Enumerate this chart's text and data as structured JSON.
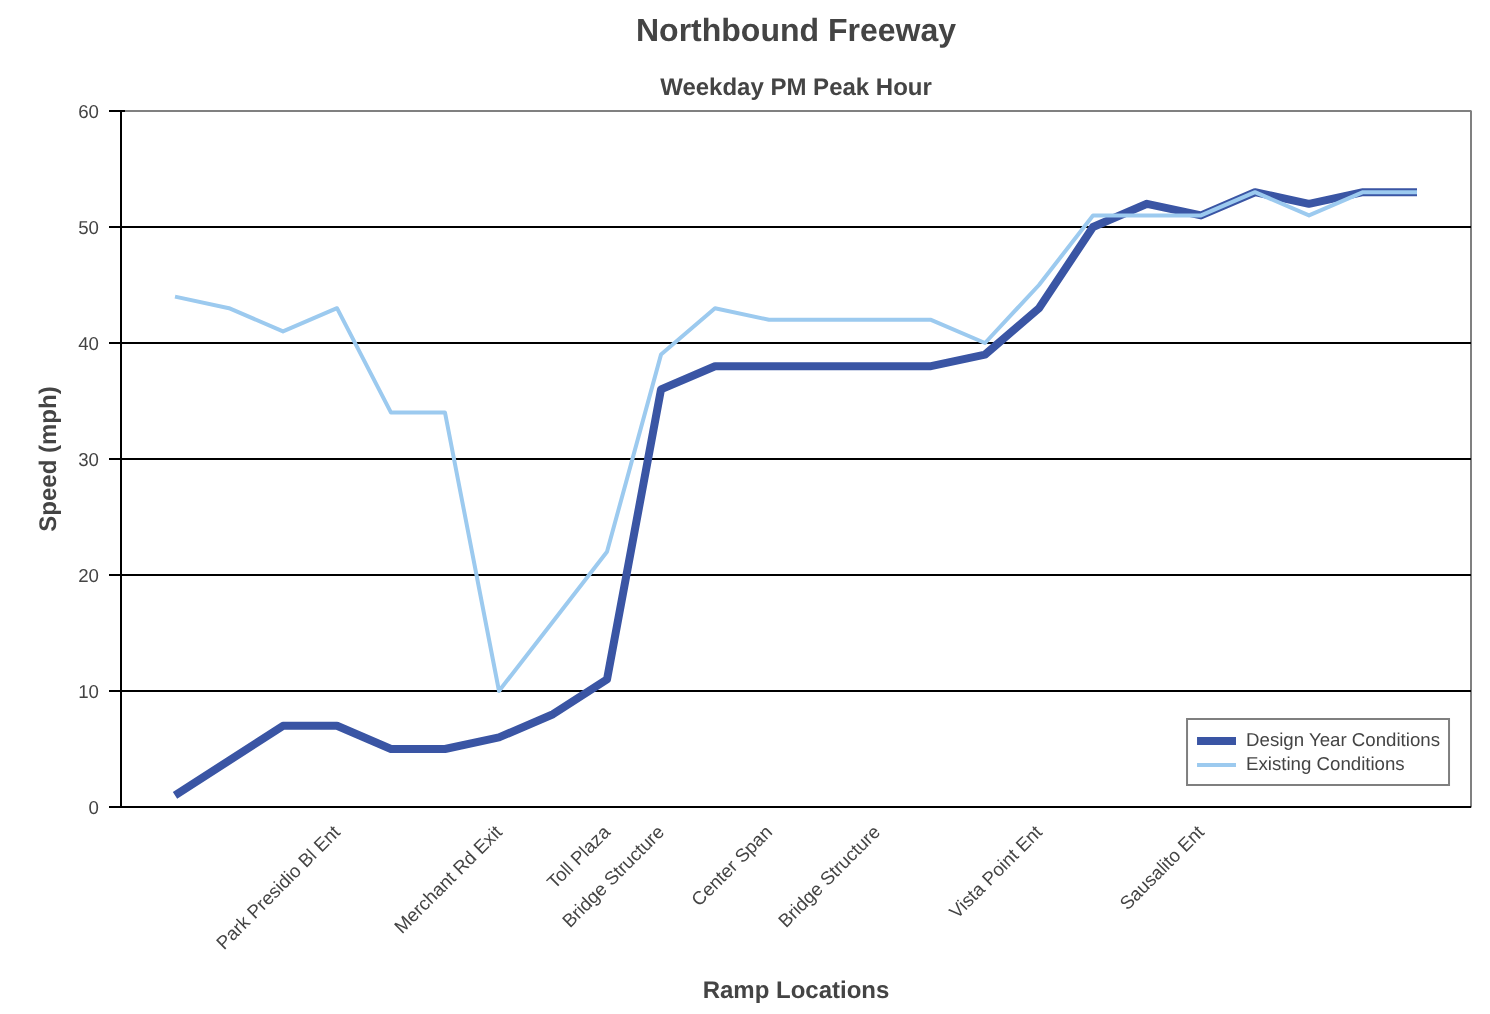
{
  "chart_data": {
    "type": "line",
    "title": "Northbound Freeway",
    "subtitle": "Weekday PM Peak Hour",
    "xlabel": "Ramp Locations",
    "ylabel": "Speed (mph)",
    "categories": [
      null,
      null,
      null,
      "Park Presidio Bl Ent",
      null,
      null,
      "Merchant Rd Exit",
      null,
      "Toll Plaza",
      "Bridge Structure",
      null,
      "Center Span",
      null,
      "Bridge Structure",
      null,
      null,
      "Vista Point Ent",
      null,
      null,
      "Sausalito Ent",
      null,
      null,
      null,
      null
    ],
    "series": [
      {
        "name": "Design Year Conditions",
        "color": "#3a55a4",
        "values": [
          1,
          4,
          7,
          7,
          5,
          5,
          6,
          8,
          11,
          36,
          38,
          38,
          38,
          38,
          38,
          39,
          43,
          50,
          52,
          51,
          53,
          52,
          53,
          53
        ]
      },
      {
        "name": "Existing Conditions",
        "color": "#9ccaef",
        "values": [
          44,
          43,
          41,
          43,
          34,
          34,
          10,
          16,
          22,
          39,
          43,
          42,
          42,
          42,
          42,
          40,
          45,
          51,
          51,
          51,
          53,
          51,
          53,
          53
        ]
      }
    ],
    "ylim": [
      0,
      60
    ],
    "yticks": [
      0,
      10,
      20,
      30,
      40,
      50,
      60
    ],
    "grid": "y",
    "legend": "bottom right",
    "marker": "none",
    "line_style": "solid"
  }
}
